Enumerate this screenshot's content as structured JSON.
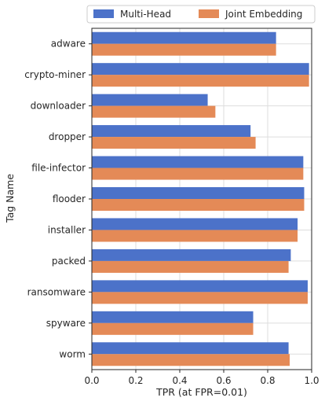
{
  "chart_data": {
    "type": "bar",
    "orientation": "horizontal",
    "xlabel": "TPR (at FPR=0.01)",
    "ylabel": "Tag Name",
    "xlim": [
      0.0,
      1.0
    ],
    "xticks": [
      "0.0",
      "0.2",
      "0.4",
      "0.6",
      "0.8",
      "1.0"
    ],
    "grid": true,
    "legend_position": "top",
    "categories": [
      "adware",
      "crypto-miner",
      "downloader",
      "dropper",
      "file-infector",
      "flooder",
      "installer",
      "packed",
      "ransomware",
      "spyware",
      "worm"
    ],
    "series": [
      {
        "name": "Multi-Head",
        "color": "#4c72c9",
        "values": [
          0.838,
          0.988,
          0.527,
          0.722,
          0.962,
          0.966,
          0.936,
          0.905,
          0.982,
          0.734,
          0.895
        ]
      },
      {
        "name": "Joint Embedding",
        "color": "#e48a57",
        "values": [
          0.838,
          0.988,
          0.562,
          0.745,
          0.962,
          0.966,
          0.936,
          0.895,
          0.982,
          0.734,
          0.9
        ]
      }
    ]
  }
}
